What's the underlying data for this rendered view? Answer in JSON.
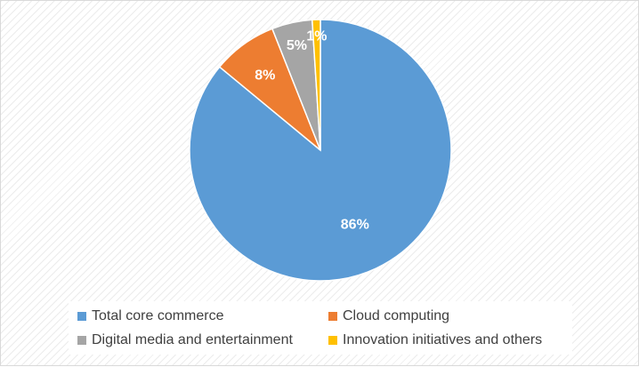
{
  "chart_data": {
    "type": "pie",
    "categories": [
      "Total core commerce",
      "Cloud computing",
      "Digital media and entertainment",
      "Innovation initiatives and others"
    ],
    "values": [
      86,
      8,
      5,
      1
    ],
    "value_labels": [
      "86%",
      "8%",
      "5%",
      "1%"
    ],
    "colors": [
      "#5b9bd5",
      "#ed7d31",
      "#a5a5a5",
      "#ffc000"
    ],
    "title": "",
    "legend_position": "bottom"
  }
}
